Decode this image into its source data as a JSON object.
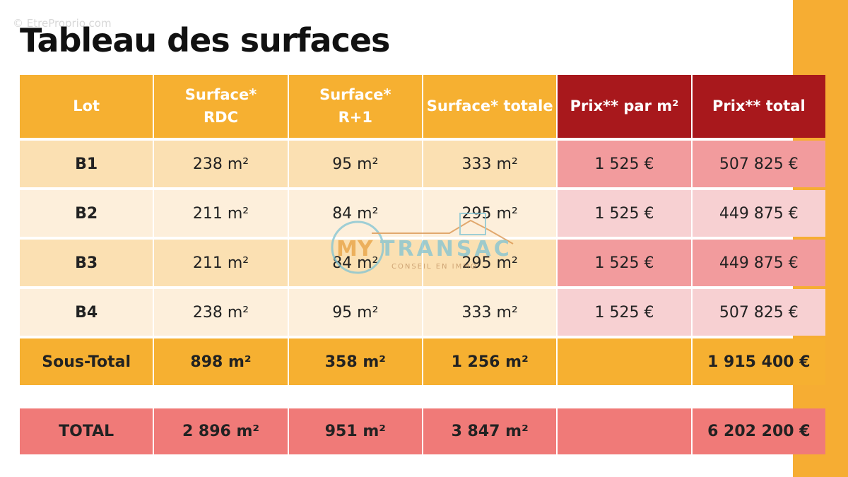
{
  "watermark": "© EtreProprio.com",
  "title": "Tableau des surfaces",
  "headers": [
    "Lot",
    "Surface* RDC",
    "Surface* R+1",
    "Surface* totale",
    "Prix** par m²",
    "Prix** total"
  ],
  "rows": [
    [
      "B1",
      "238 m²",
      "95 m²",
      "333 m²",
      "1 525 €",
      "507 825 €"
    ],
    [
      "B2",
      "211 m²",
      "84 m²",
      "295 m²",
      "1 525 €",
      "449 875 €"
    ],
    [
      "B3",
      "211 m²",
      "84 m²",
      "295 m²",
      "1 525 €",
      "449 875 €"
    ],
    [
      "B4",
      "238 m²",
      "95 m²",
      "333 m²",
      "1 525 €",
      "507 825 €"
    ]
  ],
  "subtotal": [
    "Sous-Total",
    "898 m²",
    "358 m²",
    "1 256 m²",
    "",
    "1 915 400 €"
  ],
  "total": [
    "TOTAL",
    "2 896 m²",
    "951 m²",
    "3 847 m²",
    "",
    "6 202 200 €"
  ],
  "logo": {
    "brand_a": "MY",
    "brand_b": "TRANSAC",
    "tagline": "CONSEIL EN IMMO"
  },
  "colors": {
    "orange": "#f6b031",
    "red": "#a8181c",
    "pink": "#f29b9d",
    "total": "#f07a78"
  }
}
